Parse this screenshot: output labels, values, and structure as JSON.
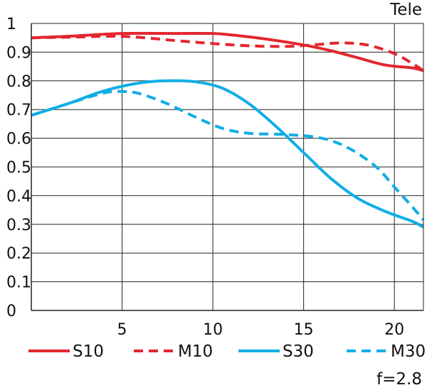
{
  "chart_data": {
    "type": "line",
    "title": "Tele",
    "footnote": "f=2.8",
    "xlim": [
      0,
      21.6
    ],
    "ylim": [
      0,
      1
    ],
    "xticks": [
      5,
      10,
      15,
      20
    ],
    "yticks": [
      0,
      0.1,
      0.2,
      0.3,
      0.4,
      0.5,
      0.6,
      0.7,
      0.8,
      0.9,
      1
    ],
    "xlabel": "",
    "ylabel": "",
    "grid": true,
    "colors": {
      "red": "#e3262e",
      "blue": "#11aee6",
      "grid": "#222222"
    },
    "series": [
      {
        "name": "S10",
        "color": "#e3262e",
        "dash": "solid",
        "x": [
          0,
          2,
          5,
          8,
          10,
          11,
          13,
          15,
          16.5,
          18,
          19.5,
          21,
          21.6
        ],
        "y": [
          0.95,
          0.955,
          0.965,
          0.965,
          0.965,
          0.96,
          0.945,
          0.925,
          0.905,
          0.88,
          0.855,
          0.845,
          0.835
        ]
      },
      {
        "name": "M10",
        "color": "#e3262e",
        "dash": "dashed",
        "x": [
          0,
          2,
          5,
          8,
          10,
          12,
          14,
          15.5,
          17,
          18.5,
          20,
          21,
          21.6
        ],
        "y": [
          0.95,
          0.952,
          0.955,
          0.94,
          0.93,
          0.922,
          0.92,
          0.925,
          0.932,
          0.925,
          0.895,
          0.86,
          0.835
        ]
      },
      {
        "name": "S30",
        "color": "#11aee6",
        "dash": "solid",
        "x": [
          0,
          2,
          4,
          6,
          7.5,
          9,
          10.5,
          12,
          13.5,
          15,
          16.5,
          18,
          19.5,
          21,
          21.6
        ],
        "y": [
          0.68,
          0.72,
          0.765,
          0.793,
          0.8,
          0.797,
          0.775,
          0.72,
          0.64,
          0.55,
          0.46,
          0.39,
          0.345,
          0.31,
          0.29
        ]
      },
      {
        "name": "M30",
        "color": "#11aee6",
        "dash": "dashed",
        "x": [
          0,
          2,
          4,
          5,
          6,
          7.5,
          9,
          10.5,
          12,
          14,
          16,
          17.5,
          19,
          20,
          21,
          21.6
        ],
        "y": [
          0.68,
          0.72,
          0.758,
          0.763,
          0.755,
          0.72,
          0.675,
          0.635,
          0.617,
          0.613,
          0.6,
          0.565,
          0.5,
          0.43,
          0.36,
          0.315
        ]
      }
    ]
  }
}
